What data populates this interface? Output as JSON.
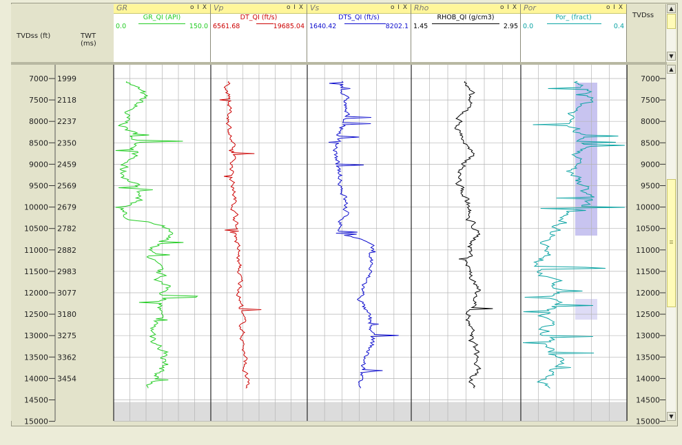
{
  "depth_header": {
    "left_label": "TVDss (ft)",
    "right_label": "TWT (ms)"
  },
  "right_header": {
    "label": "TVDss"
  },
  "tracks": [
    {
      "name": "GR",
      "curve": "GR_QI (API)",
      "min": "0.0",
      "max": "150.0",
      "color": "#22cc22",
      "controls": "o I X"
    },
    {
      "name": "Vp",
      "curve": "DT_QI (ft/s)",
      "min": "6561.68",
      "max": "19685.04",
      "color": "#cc0000",
      "controls": "o I X"
    },
    {
      "name": "Vs",
      "curve": "DTS_QI (ft/s)",
      "min": "1640.42",
      "max": "8202.1",
      "color": "#0a0acc",
      "controls": "o I X"
    },
    {
      "name": "Rho",
      "curve": "RHOB_QI (g/cm3)",
      "min": "1.45",
      "max": "2.95",
      "color": "#000000",
      "controls": "o I X"
    },
    {
      "name": "Por",
      "curve": "Por_ (fract)",
      "min": "0.0",
      "max": "0.4",
      "color": "#0aa3a3",
      "controls": "o I X"
    }
  ],
  "depth_ticks": [
    {
      "tvd": "7000",
      "twt": "1999"
    },
    {
      "tvd": "7500",
      "twt": "2118"
    },
    {
      "tvd": "8000",
      "twt": "2237"
    },
    {
      "tvd": "8500",
      "twt": "2350"
    },
    {
      "tvd": "9000",
      "twt": "2459"
    },
    {
      "tvd": "9500",
      "twt": "2569"
    },
    {
      "tvd": "10000",
      "twt": "2679"
    },
    {
      "tvd": "10500",
      "twt": "2782"
    },
    {
      "tvd": "11000",
      "twt": "2882"
    },
    {
      "tvd": "11500",
      "twt": "2983"
    },
    {
      "tvd": "12000",
      "twt": "3077"
    },
    {
      "tvd": "12500",
      "twt": "3180"
    },
    {
      "tvd": "13000",
      "twt": "3275"
    },
    {
      "tvd": "13500",
      "twt": "3362"
    },
    {
      "tvd": "14000",
      "twt": "3454"
    },
    {
      "tvd": "14500",
      "twt": ""
    },
    {
      "tvd": "15000",
      "twt": ""
    }
  ],
  "icons": {
    "scroll_up": "arrow-up-icon",
    "scroll_down": "arrow-down-icon",
    "grip": "grip-icon"
  },
  "colors": {
    "panel": "#e3e3cb",
    "title_bar": "#fff69a",
    "no_data": "#dcdcdc",
    "por_shade": "#c8c4f0"
  }
}
